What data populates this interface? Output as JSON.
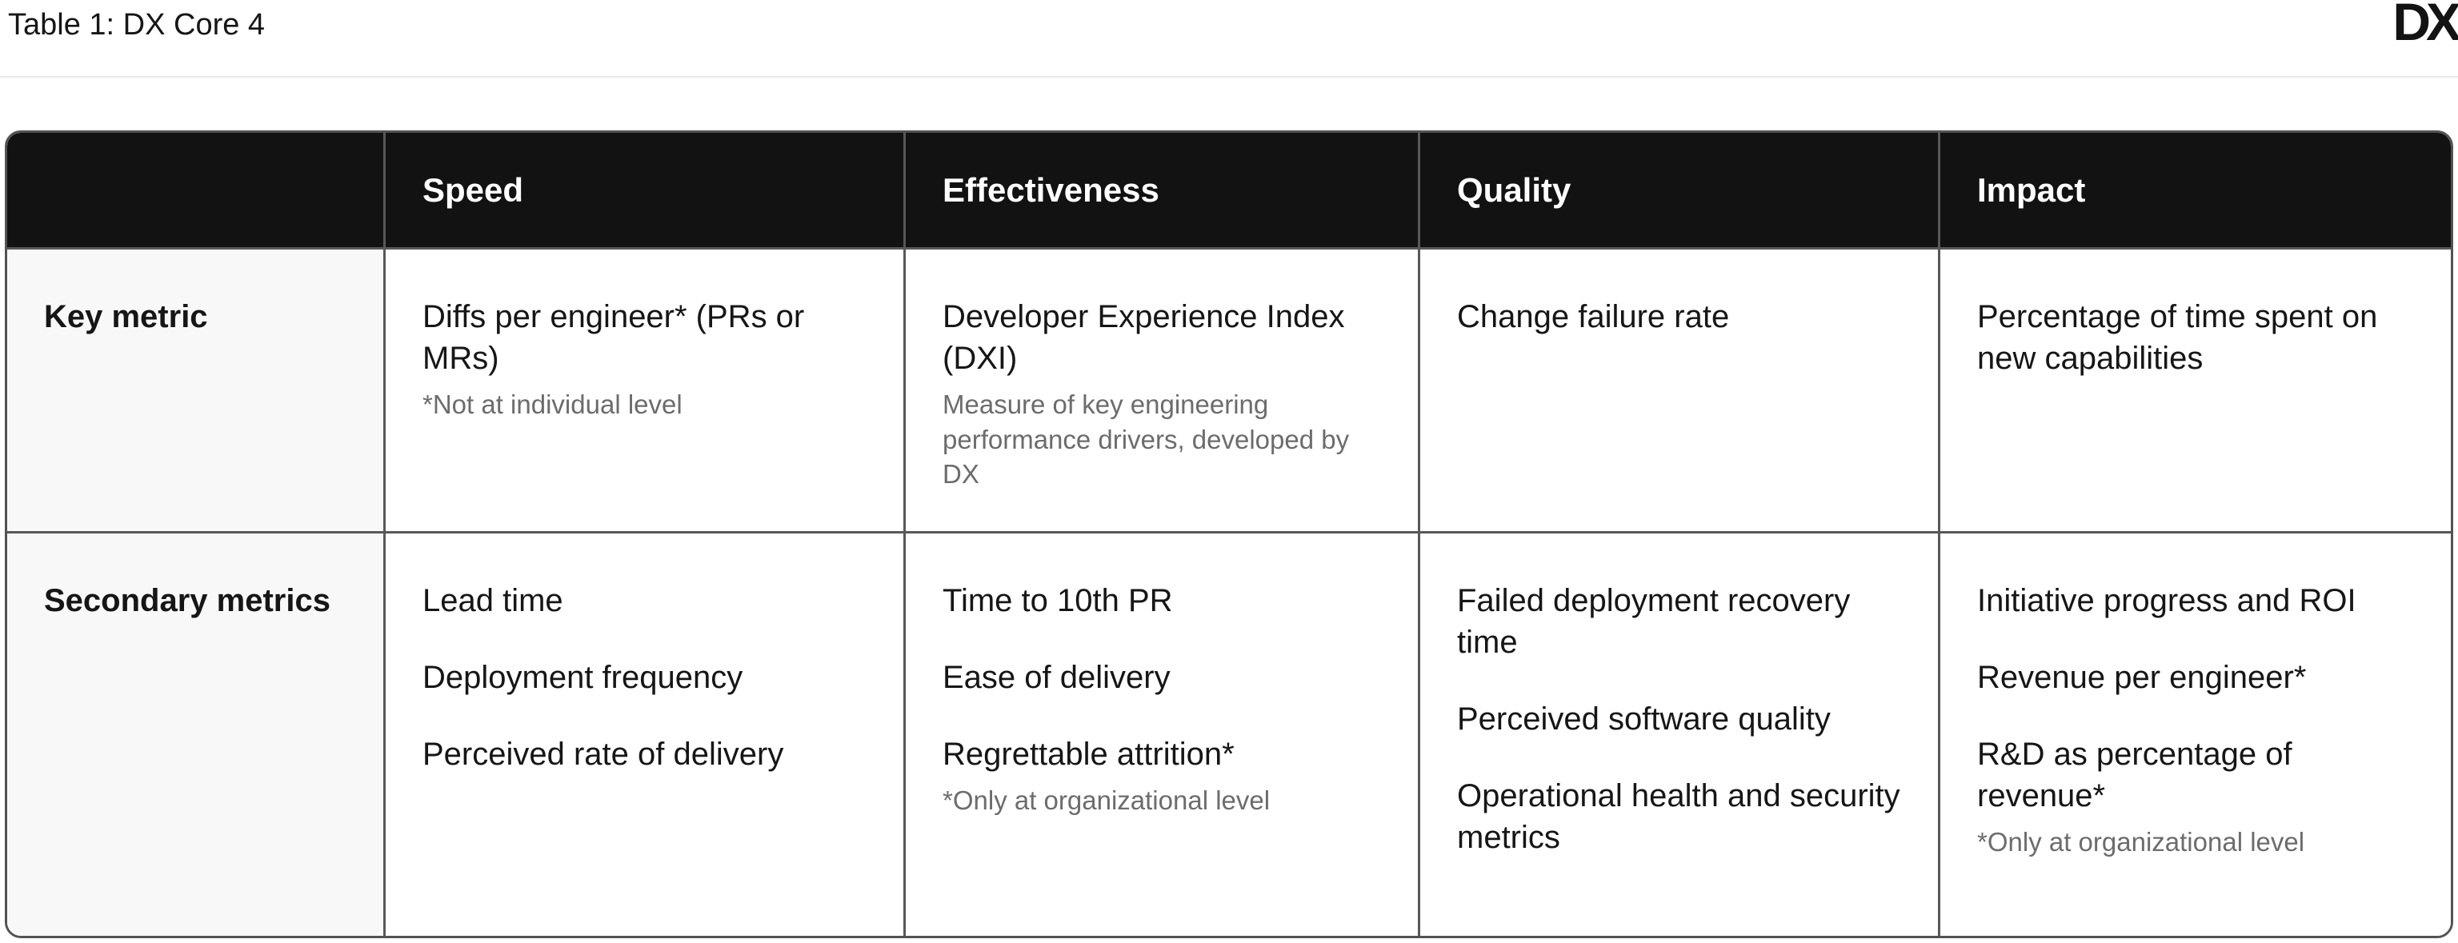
{
  "page": {
    "title": "Table 1: DX Core 4",
    "logo_text": "DX"
  },
  "table": {
    "columns": [
      "Speed",
      "Effectiveness",
      "Quality",
      "Impact"
    ],
    "rows": [
      {
        "label": "Key metric",
        "speed": {
          "main": "Diffs per engineer* (PRs or MRs)",
          "note": "*Not at individual level"
        },
        "effectiveness": {
          "main": "Developer Experience Index (DXI)",
          "note": "Measure of key engineering performance drivers, developed by DX"
        },
        "quality": {
          "main": "Change failure rate"
        },
        "impact": {
          "main": "Percentage of time spent on new capabilities"
        }
      },
      {
        "label": "Secondary metrics",
        "speed": {
          "items": [
            "Lead time",
            "Deployment frequency",
            "Perceived rate of delivery"
          ]
        },
        "effectiveness": {
          "items": [
            "Time to 10th PR",
            "Ease of delivery",
            "Regrettable attrition*"
          ],
          "note": "*Only at organizational level"
        },
        "quality": {
          "items": [
            "Failed deployment recovery time",
            "Perceived software quality",
            "Operational health and security metrics"
          ]
        },
        "impact": {
          "items": [
            "Initiative progress and ROI",
            "Revenue per engineer*",
            "R&D as percentage of revenue*"
          ],
          "note": "*Only at organizational level"
        }
      }
    ]
  },
  "colors": {
    "header_bg": "#121212",
    "header_text": "#ffffff",
    "table_border": "#555555",
    "label_column_bg": "#f8f8f8",
    "body_text": "#161616",
    "note_text": "#6c6c6c",
    "title_divider": "#e9e9e9"
  }
}
